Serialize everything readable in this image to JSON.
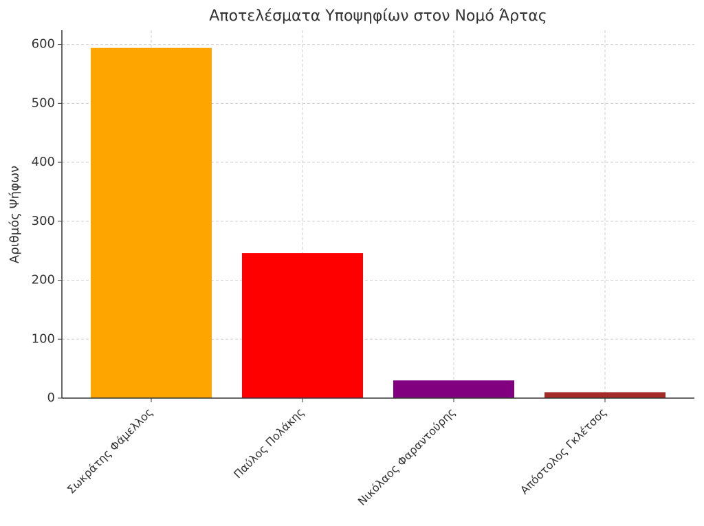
{
  "chart_data": {
    "type": "bar",
    "title": "Αποτελέσματα Υποψηφίων στον Νομό Άρτας",
    "y_label": "Αριθμός Ψήφων",
    "categories": [
      "Σωκράτης Φάμελλος",
      "Παύλος Πολάκης",
      "Νικόλαος Φαραντούρης",
      "Απόστολος Γκλέτσος"
    ],
    "values": [
      594,
      246,
      30,
      10
    ],
    "colors": [
      "#ffa500",
      "#ff0000",
      "#800080",
      "#a52a2a"
    ],
    "ylim": [
      0,
      624
    ],
    "yticks": [
      0,
      100,
      200,
      300,
      400,
      500,
      600
    ],
    "grid": true
  }
}
